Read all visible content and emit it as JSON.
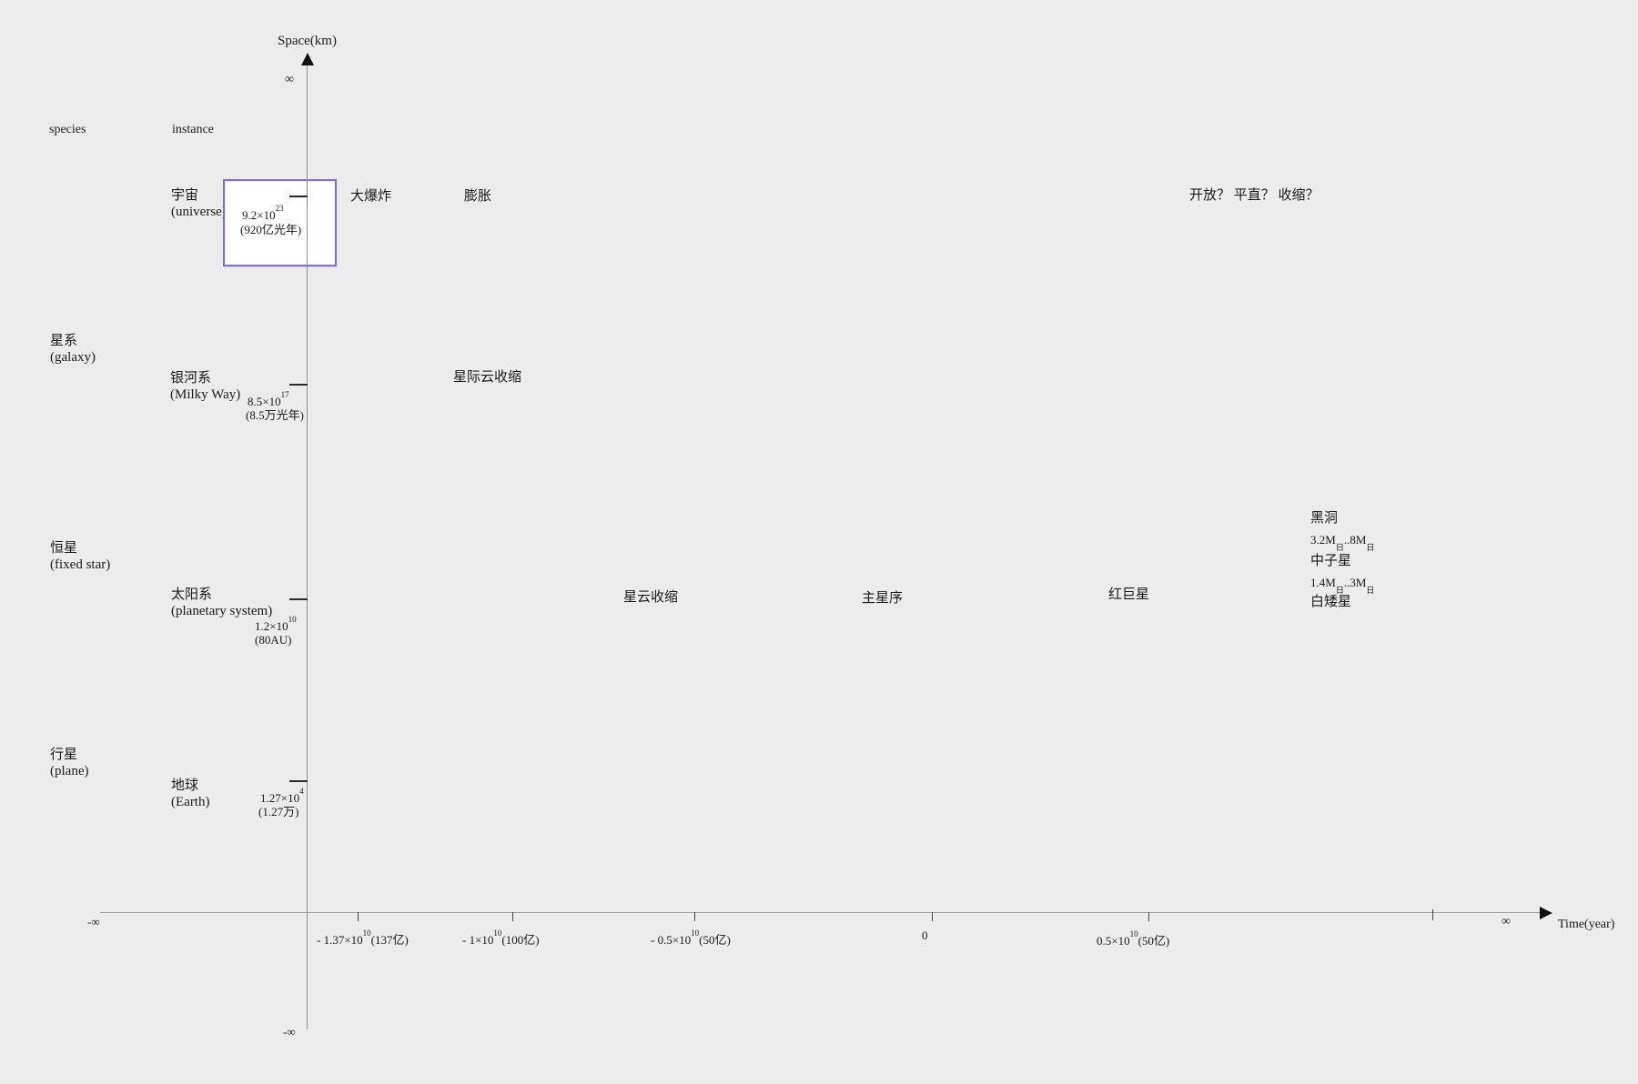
{
  "colors": {
    "background": "#ececec",
    "axis_line": "#9a9a9a",
    "text": "#1a1a1a",
    "selection_box_border": "#7b68ee",
    "selection_box_fill": "#ffffff"
  },
  "headers": {
    "species": "species",
    "instance": "instance"
  },
  "y_axis": {
    "title": "Space(km)",
    "pos_inf": "∞",
    "neg_inf": "-∞"
  },
  "x_axis": {
    "title": "Time(year)",
    "neg_inf": "-∞",
    "pos_inf": "∞",
    "tick_labels": [
      {
        "runs": [
          {
            "t": "- 1.37×10"
          },
          {
            "t": "10",
            "s": "sup"
          },
          {
            "t": "(137亿)"
          }
        ]
      },
      {
        "runs": [
          {
            "t": "- 1×10"
          },
          {
            "t": "10",
            "s": "sup"
          },
          {
            "t": "(100亿)"
          }
        ]
      },
      {
        "runs": [
          {
            "t": "- 0.5×10"
          },
          {
            "t": "10",
            "s": "sup"
          },
          {
            "t": "(50亿)"
          }
        ]
      },
      {
        "runs": [
          {
            "t": "0"
          }
        ]
      },
      {
        "runs": [
          {
            "t": "0.5×10"
          },
          {
            "t": "10",
            "s": "sup"
          },
          {
            "t": "(50亿)"
          }
        ]
      }
    ]
  },
  "species": [
    {
      "zh": "星系",
      "en": "(galaxy)"
    },
    {
      "zh": "恒星",
      "en": "(fixed star)"
    },
    {
      "zh": "行星",
      "en": "(plane)"
    }
  ],
  "instances": [
    {
      "zh": "宇宙",
      "en": "(universe)",
      "size_runs": [
        {
          "t": "9.2×10"
        },
        {
          "t": "23",
          "s": "sup"
        }
      ],
      "size_note": "(920亿光年)"
    },
    {
      "zh": "银河系",
      "en": "(Milky Way)",
      "size_runs": [
        {
          "t": "8.5×10"
        },
        {
          "t": "17",
          "s": "sup"
        }
      ],
      "size_note": "(8.5万光年)"
    },
    {
      "zh": "太阳系",
      "en": "(planetary system)",
      "size_runs": [
        {
          "t": "1.2×10"
        },
        {
          "t": "10",
          "s": "sup"
        }
      ],
      "size_note": "(80AU)"
    },
    {
      "zh": "地球",
      "en": "(Earth)",
      "size_runs": [
        {
          "t": "1.27×10"
        },
        {
          "t": "4",
          "s": "sup"
        }
      ],
      "size_note": "(1.27万)"
    }
  ],
  "events": {
    "big_bang": "大爆炸",
    "expansion": "膨胀",
    "fate_question": "开放？ 平直？ 收缩？",
    "interstellar_cloud_contraction": "星际云收缩",
    "nebula_contraction": "星云收缩",
    "main_sequence": "主星序",
    "red_giant": "红巨星",
    "black_hole": "黑洞",
    "black_hole_mass_runs": [
      {
        "t": "3.2M"
      },
      {
        "t": "日",
        "s": "sub"
      },
      {
        "t": ".."
      },
      {
        "t": "8M"
      },
      {
        "t": "日",
        "s": "sub"
      }
    ],
    "neutron_star": "中子星",
    "neutron_star_mass_runs": [
      {
        "t": "1.4M"
      },
      {
        "t": "日",
        "s": "sub"
      },
      {
        "t": ".."
      },
      {
        "t": "3M"
      },
      {
        "t": "日",
        "s": "sub"
      }
    ],
    "white_dwarf": "白矮星"
  }
}
